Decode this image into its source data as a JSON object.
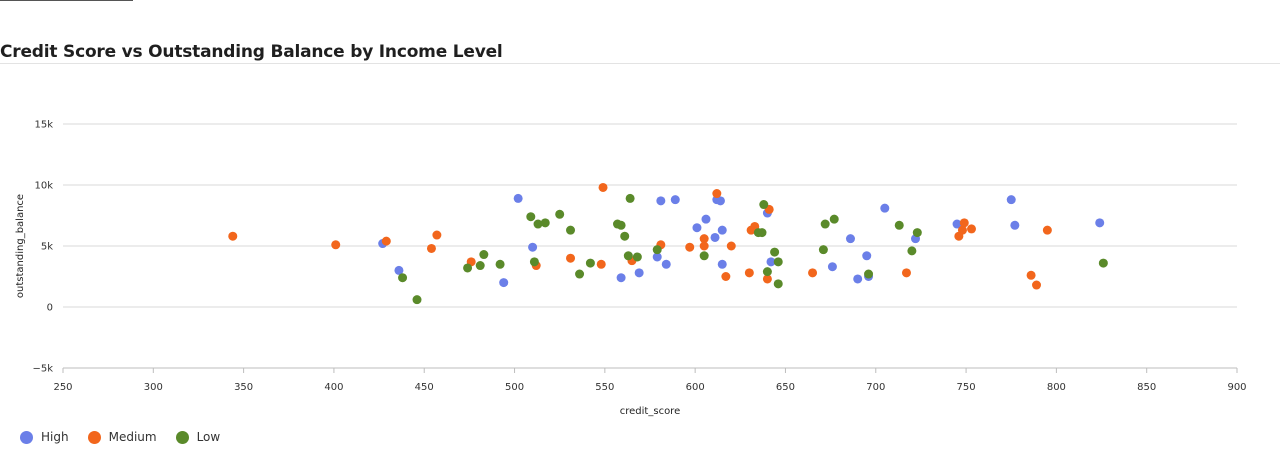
{
  "chart_data": {
    "type": "scatter",
    "title": "Credit Score vs Outstanding Balance by Income Level",
    "xlabel": "credit_score",
    "ylabel": "outstanding_balance",
    "xlim": [
      250,
      900
    ],
    "ylim": [
      -5000,
      15000
    ],
    "xticks": [
      "250",
      "300",
      "350",
      "400",
      "450",
      "500",
      "550",
      "600",
      "650",
      "700",
      "750",
      "800",
      "850",
      "900"
    ],
    "yticks": [
      "15k",
      "10k",
      "5k",
      "0",
      "−5k"
    ],
    "grid": true,
    "legend_position": "bottom-left",
    "series": [
      {
        "name": "High",
        "color": "#6b7fe8",
        "points": [
          [
            427,
            5200
          ],
          [
            436,
            3000
          ],
          [
            494,
            2000
          ],
          [
            502,
            8900
          ],
          [
            510,
            4900
          ],
          [
            559,
            2400
          ],
          [
            569,
            2800
          ],
          [
            579,
            4100
          ],
          [
            581,
            8700
          ],
          [
            584,
            3500
          ],
          [
            589,
            8800
          ],
          [
            601,
            6500
          ],
          [
            606,
            7200
          ],
          [
            611,
            5700
          ],
          [
            612,
            8800
          ],
          [
            614,
            8700
          ],
          [
            615,
            6300
          ],
          [
            615,
            3500
          ],
          [
            640,
            7700
          ],
          [
            642,
            3700
          ],
          [
            676,
            3300
          ],
          [
            686,
            5600
          ],
          [
            690,
            2300
          ],
          [
            695,
            4200
          ],
          [
            696,
            2500
          ],
          [
            705,
            8100
          ],
          [
            722,
            5600
          ],
          [
            745,
            6800
          ],
          [
            775,
            8800
          ],
          [
            777,
            6700
          ],
          [
            824,
            6900
          ]
        ]
      },
      {
        "name": "Medium",
        "color": "#f2661c",
        "points": [
          [
            344,
            5800
          ],
          [
            401,
            5100
          ],
          [
            429,
            5400
          ],
          [
            454,
            4800
          ],
          [
            457,
            5900
          ],
          [
            476,
            3700
          ],
          [
            512,
            3400
          ],
          [
            531,
            4000
          ],
          [
            548,
            3500
          ],
          [
            549,
            9800
          ],
          [
            565,
            3800
          ],
          [
            581,
            5100
          ],
          [
            597,
            4900
          ],
          [
            605,
            5600
          ],
          [
            605,
            5000
          ],
          [
            612,
            9300
          ],
          [
            617,
            2500
          ],
          [
            620,
            5000
          ],
          [
            630,
            2800
          ],
          [
            631,
            6300
          ],
          [
            633,
            6600
          ],
          [
            640,
            2300
          ],
          [
            641,
            8000
          ],
          [
            665,
            2800
          ],
          [
            717,
            2800
          ],
          [
            746,
            5800
          ],
          [
            748,
            6300
          ],
          [
            749,
            6900
          ],
          [
            753,
            6400
          ],
          [
            786,
            2600
          ],
          [
            789,
            1800
          ],
          [
            795,
            6300
          ]
        ]
      },
      {
        "name": "Low",
        "color": "#5a8a2a",
        "points": [
          [
            438,
            2400
          ],
          [
            446,
            600
          ],
          [
            474,
            3200
          ],
          [
            481,
            3400
          ],
          [
            483,
            4300
          ],
          [
            492,
            3500
          ],
          [
            509,
            7400
          ],
          [
            511,
            3700
          ],
          [
            513,
            6800
          ],
          [
            517,
            6900
          ],
          [
            525,
            7600
          ],
          [
            531,
            6300
          ],
          [
            536,
            2700
          ],
          [
            542,
            3600
          ],
          [
            557,
            6800
          ],
          [
            559,
            6700
          ],
          [
            561,
            5800
          ],
          [
            563,
            4200
          ],
          [
            564,
            8900
          ],
          [
            568,
            4100
          ],
          [
            579,
            4700
          ],
          [
            605,
            4200
          ],
          [
            635,
            6100
          ],
          [
            637,
            6100
          ],
          [
            638,
            8400
          ],
          [
            640,
            2900
          ],
          [
            644,
            4500
          ],
          [
            646,
            3700
          ],
          [
            646,
            1900
          ],
          [
            671,
            4700
          ],
          [
            672,
            6800
          ],
          [
            677,
            7200
          ],
          [
            696,
            2700
          ],
          [
            713,
            6700
          ],
          [
            720,
            4600
          ],
          [
            723,
            6100
          ],
          [
            826,
            3600
          ]
        ]
      }
    ]
  }
}
